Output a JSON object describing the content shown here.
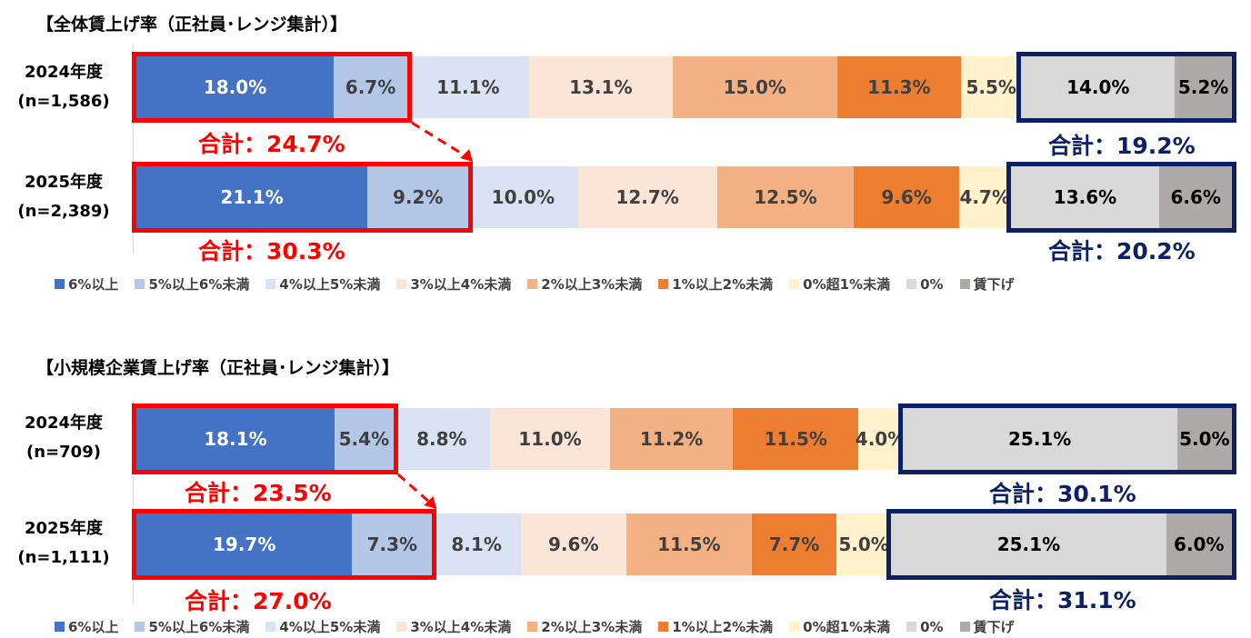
{
  "colors": {
    "6plus": "#4472c4",
    "5to6": "#b4c7e7",
    "4to5": "#dae3f3",
    "3to4": "#fbe5d6",
    "2to3": "#f4b183",
    "1to2": "#ed7d31",
    "0to1": "#fff2cc",
    "zero": "#d9d9d9",
    "cut": "#aeaaaa",
    "highlight_red": "#ff0000",
    "highlight_navy": "#0b2163"
  },
  "legend": [
    "6%以上",
    "5%以上6%未満",
    "4%以上5%未満",
    "3%以上4%未満",
    "2%以上3%未満",
    "1%以上2%未満",
    "0%超1%未満",
    "0%",
    "賃下げ"
  ],
  "charts": [
    {
      "title": "【全体賃上げ率（正社員･レンジ集計）】",
      "rows": [
        {
          "year": "2024年度",
          "n": "(n=1,586)",
          "labels": [
            "18.0%",
            "6.7%",
            "11.1%",
            "13.1%",
            "15.0%",
            "11.3%",
            "5.5%",
            "14.0%",
            "5.2%"
          ],
          "total_up": "合計：24.7%",
          "total_down": "合計：19.2%"
        },
        {
          "year": "2025年度",
          "n": "(n=2,389)",
          "labels": [
            "21.1%",
            "9.2%",
            "10.0%",
            "12.7%",
            "12.5%",
            "9.6%",
            "4.7%",
            "13.6%",
            "6.6%"
          ],
          "total_up": "合計：30.3%",
          "total_down": "合計：20.2%"
        }
      ]
    },
    {
      "title": "【小規模企業賃上げ率（正社員･レンジ集計）】",
      "rows": [
        {
          "year": "2024年度",
          "n": "(n=709)",
          "labels": [
            "18.1%",
            "5.4%",
            "8.8%",
            "11.0%",
            "11.2%",
            "11.5%",
            "4.0%",
            "25.1%",
            "5.0%"
          ],
          "total_up": "合計：23.5%",
          "total_down": "合計：30.1%"
        },
        {
          "year": "2025年度",
          "n": "(n=1,111)",
          "labels": [
            "19.7%",
            "7.3%",
            "8.1%",
            "9.6%",
            "11.5%",
            "7.7%",
            "5.0%",
            "25.1%",
            "6.0%"
          ],
          "total_up": "合計：27.0%",
          "total_down": "合計：31.1%"
        }
      ]
    }
  ],
  "chart_data": [
    {
      "type": "bar",
      "orientation": "horizontal-stacked-100",
      "title": "【全体賃上げ率（正社員･レンジ集計）】",
      "categories": [
        "2024年度 (n=1,586)",
        "2025年度 (n=2,389)"
      ],
      "series": [
        {
          "name": "6%以上",
          "values": [
            18.0,
            21.1
          ]
        },
        {
          "name": "5%以上6%未満",
          "values": [
            6.7,
            9.2
          ]
        },
        {
          "name": "4%以上5%未満",
          "values": [
            11.1,
            10.0
          ]
        },
        {
          "name": "3%以上4%未満",
          "values": [
            13.1,
            12.7
          ]
        },
        {
          "name": "2%以上3%未満",
          "values": [
            15.0,
            12.5
          ]
        },
        {
          "name": "1%以上2%未満",
          "values": [
            11.3,
            9.6
          ]
        },
        {
          "name": "0%超1%未満",
          "values": [
            5.5,
            4.7
          ]
        },
        {
          "name": "0%",
          "values": [
            14.0,
            13.6
          ]
        },
        {
          "name": "賃下げ",
          "values": [
            5.2,
            6.6
          ]
        }
      ],
      "annotations": [
        "合計：24.7%",
        "合計：19.2%",
        "合計：30.3%",
        "合計：20.2%"
      ],
      "legend_position": "bottom",
      "xlim": [
        0,
        100
      ]
    },
    {
      "type": "bar",
      "orientation": "horizontal-stacked-100",
      "title": "【小規模企業賃上げ率（正社員･レンジ集計）】",
      "categories": [
        "2024年度 (n=709)",
        "2025年度 (n=1,111)"
      ],
      "series": [
        {
          "name": "6%以上",
          "values": [
            18.1,
            19.7
          ]
        },
        {
          "name": "5%以上6%未満",
          "values": [
            5.4,
            7.3
          ]
        },
        {
          "name": "4%以上5%未満",
          "values": [
            8.8,
            8.1
          ]
        },
        {
          "name": "3%以上4%未満",
          "values": [
            11.0,
            9.6
          ]
        },
        {
          "name": "2%以上3%未満",
          "values": [
            11.2,
            11.5
          ]
        },
        {
          "name": "1%以上2%未満",
          "values": [
            11.5,
            7.7
          ]
        },
        {
          "name": "0%超1%未満",
          "values": [
            4.0,
            5.0
          ]
        },
        {
          "name": "0%",
          "values": [
            25.1,
            25.1
          ]
        },
        {
          "name": "賃下げ",
          "values": [
            5.0,
            6.0
          ]
        }
      ],
      "annotations": [
        "合計：23.5%",
        "合計：30.1%",
        "合計：27.0%",
        "合計：31.1%"
      ],
      "legend_position": "bottom",
      "xlim": [
        0,
        100
      ]
    }
  ]
}
